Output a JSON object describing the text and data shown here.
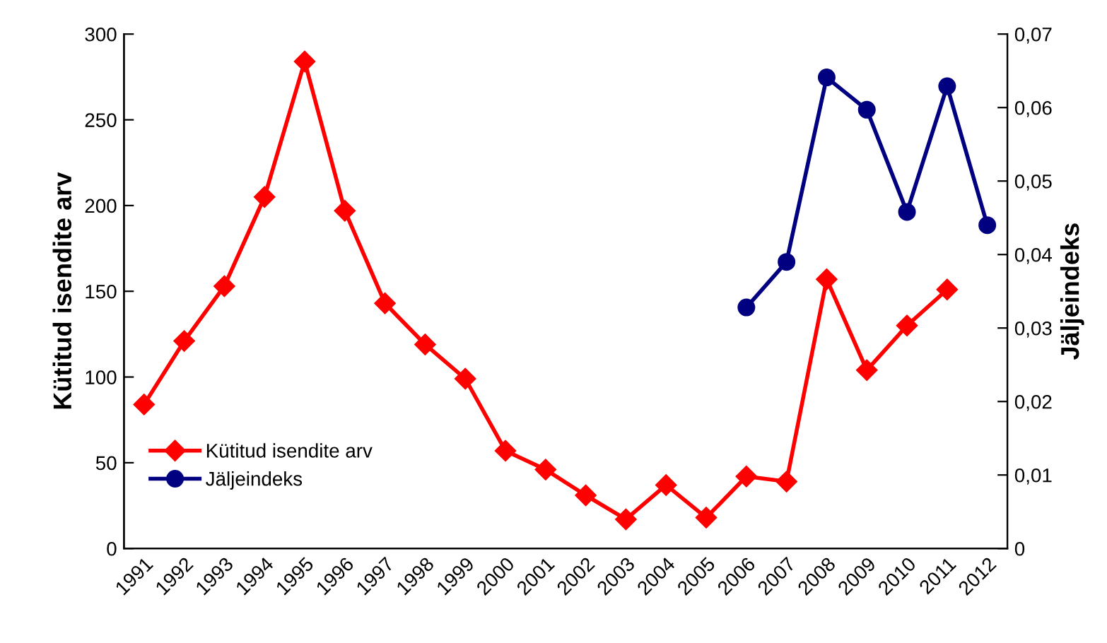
{
  "chart_data": {
    "type": "line",
    "ylabel": "Kütitud isendite arv",
    "y2label": "Jäljeindeks",
    "categories": [
      "1991",
      "1992",
      "1993",
      "1994",
      "1995",
      "1996",
      "1997",
      "1998",
      "1999",
      "2000",
      "2001",
      "2002",
      "2003",
      "2004",
      "2005",
      "2006",
      "2007",
      "2008",
      "2009",
      "2010",
      "2011",
      "2012"
    ],
    "series": [
      {
        "name": "Kütitud isendite arv",
        "color": "#ff0000",
        "marker": "diamond",
        "values": [
          84,
          121,
          153,
          205,
          284,
          197,
          143,
          119,
          99,
          57,
          46,
          31,
          17,
          37,
          18,
          42,
          39,
          157,
          104,
          130,
          151,
          null
        ]
      },
      {
        "name": "Jäljeindeks",
        "color": "#000080",
        "marker": "circle",
        "axis": "y2",
        "values": [
          null,
          null,
          null,
          null,
          null,
          null,
          null,
          null,
          null,
          null,
          null,
          null,
          null,
          null,
          null,
          0.0328,
          0.039,
          0.0641,
          0.0597,
          0.0458,
          0.0629,
          0.044
        ]
      }
    ],
    "ylim": [
      0,
      300
    ],
    "yticks": [
      0,
      50,
      100,
      150,
      200,
      250,
      300
    ],
    "y2lim": [
      0,
      0.07
    ],
    "y2ticks": [
      {
        "value": 0,
        "label": "0"
      },
      {
        "value": 0.01,
        "label": "0,01"
      },
      {
        "value": 0.02,
        "label": "0,02"
      },
      {
        "value": 0.03,
        "label": "0,03"
      },
      {
        "value": 0.04,
        "label": "0,04"
      },
      {
        "value": 0.05,
        "label": "0,05"
      },
      {
        "value": 0.06,
        "label": "0,06"
      },
      {
        "value": 0.07,
        "label": "0,07"
      }
    ],
    "legend": "lower left",
    "grid": false,
    "line_style": "solid"
  }
}
